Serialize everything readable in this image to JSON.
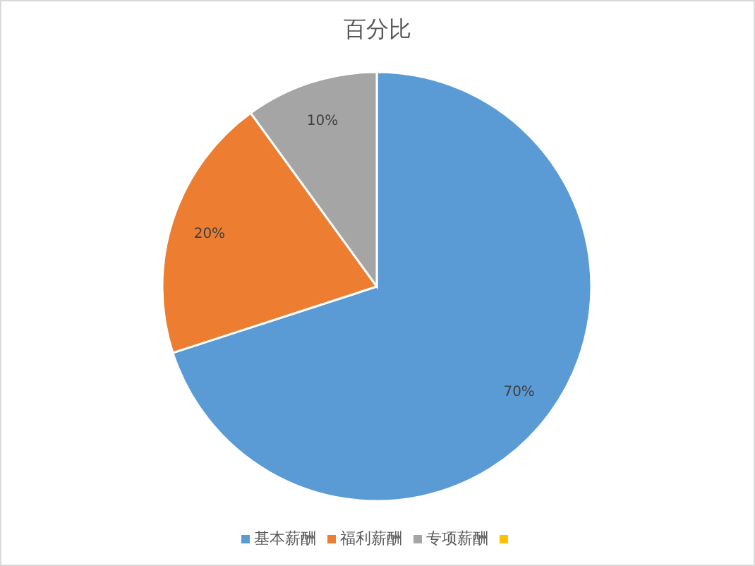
{
  "chart_data": {
    "type": "pie",
    "title": "百分比",
    "categories": [
      "基本薪酬",
      "福利薪酬",
      "专项薪酬",
      null
    ],
    "values": [
      70,
      20,
      10,
      0
    ],
    "colors": [
      "#5b9bd5",
      "#ed7d31",
      "#a5a5a5",
      "#ffc000"
    ],
    "value_labels": [
      "70%",
      "20%",
      "10%",
      null
    ],
    "legend": "bottom"
  }
}
